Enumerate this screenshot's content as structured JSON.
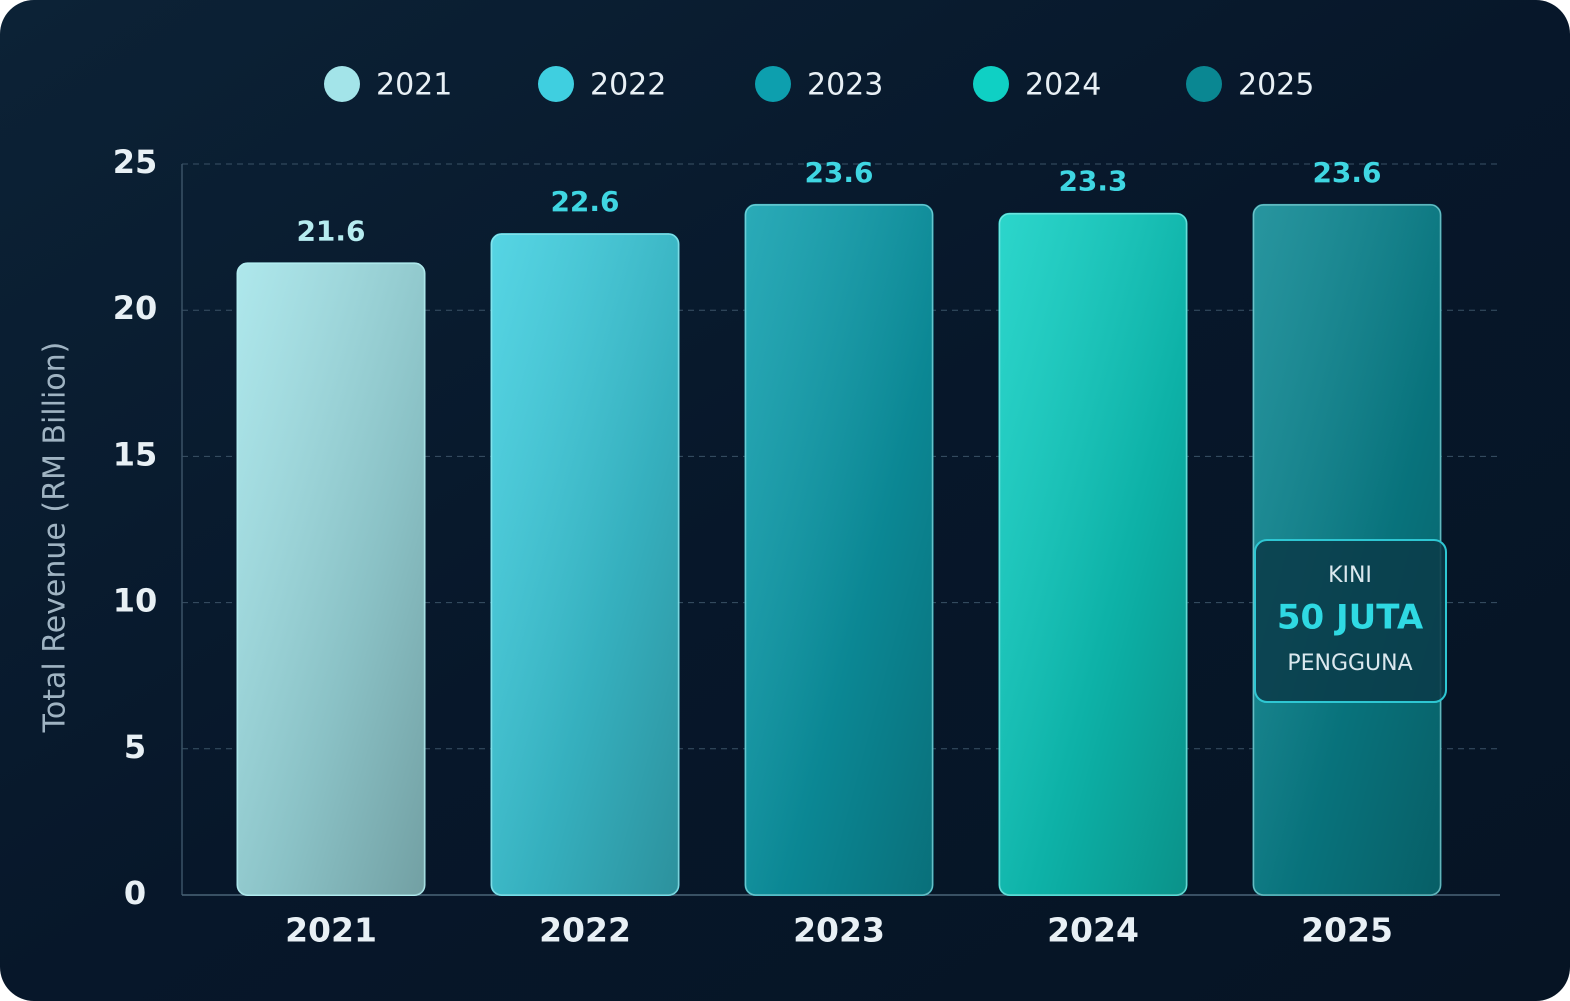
{
  "chart_data": {
    "type": "bar",
    "y_label": "Total Revenue (RM Billion)",
    "categories": [
      "2021",
      "2022",
      "2023",
      "2024",
      "2025"
    ],
    "values": [
      21.6,
      22.6,
      23.6,
      23.3,
      23.6
    ],
    "colors": [
      "#a3e4e9",
      "#3fcfe0",
      "#0d9fae",
      "#0fd0c4",
      "#0a8792"
    ],
    "ylim": [
      0,
      25
    ],
    "yticks": [
      0,
      5,
      10,
      15,
      20,
      25
    ],
    "grid": true,
    "legend": "top",
    "annotation": {
      "lines": [
        "KINI",
        "50 JUTA",
        "PENGGUNA"
      ]
    }
  }
}
